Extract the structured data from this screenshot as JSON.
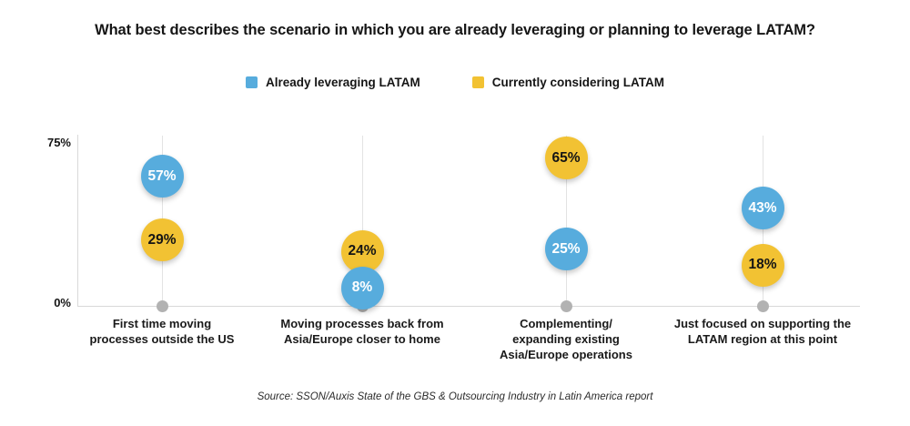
{
  "title": "What best describes the scenario in which you are already leveraging or planning to leverage LATAM?",
  "legend": {
    "items": [
      {
        "label": "Already leveraging LATAM",
        "color": "#57ACDD"
      },
      {
        "label": "Currently considering LATAM",
        "color": "#F2C233"
      }
    ]
  },
  "source": "Source: SSON/Auxis State of the GBS & Outsourcing Industry in Latin America report",
  "colors": {
    "blue": "#57ACDD",
    "yellow": "#F2C233",
    "baseline_dot": "#B2B2B2",
    "grid_line": "#E3E3E3",
    "axis_line": "#D9D9D9",
    "text": "#151515"
  },
  "chart_data": {
    "type": "scatter",
    "variant": "lollipop-bubble",
    "title": "What best describes the scenario in which you are already leveraging or planning to leverage LATAM?",
    "categories": [
      "First time moving processes outside the US",
      "Moving processes back from Asia/Europe closer to home",
      "Complementing/expanding existing Asia/Europe operations",
      "Just focused on supporting the LATAM region at this point"
    ],
    "category_lines": [
      [
        "First time moving",
        "processes outside the US"
      ],
      [
        "Moving processes back from",
        "Asia/Europe closer to home"
      ],
      [
        "Complementing/",
        "expanding existing",
        "Asia/Europe operations"
      ],
      [
        "Just focused on supporting the",
        "LATAM region at this point"
      ]
    ],
    "series": [
      {
        "name": "Already leveraging LATAM",
        "color": "#57ACDD",
        "label_color": "#FFFFFF",
        "values": [
          57,
          8,
          25,
          43
        ]
      },
      {
        "name": "Currently considering LATAM",
        "color": "#F2C233",
        "label_color": "#151515",
        "values": [
          29,
          24,
          65,
          18
        ]
      }
    ],
    "value_suffix": "%",
    "xlabel": "",
    "ylabel": "",
    "ylim": [
      0,
      75
    ],
    "yticks": [
      "0%",
      "75%"
    ],
    "grid": "vertical category lines with baseline dots",
    "legend_position": "top-center"
  }
}
